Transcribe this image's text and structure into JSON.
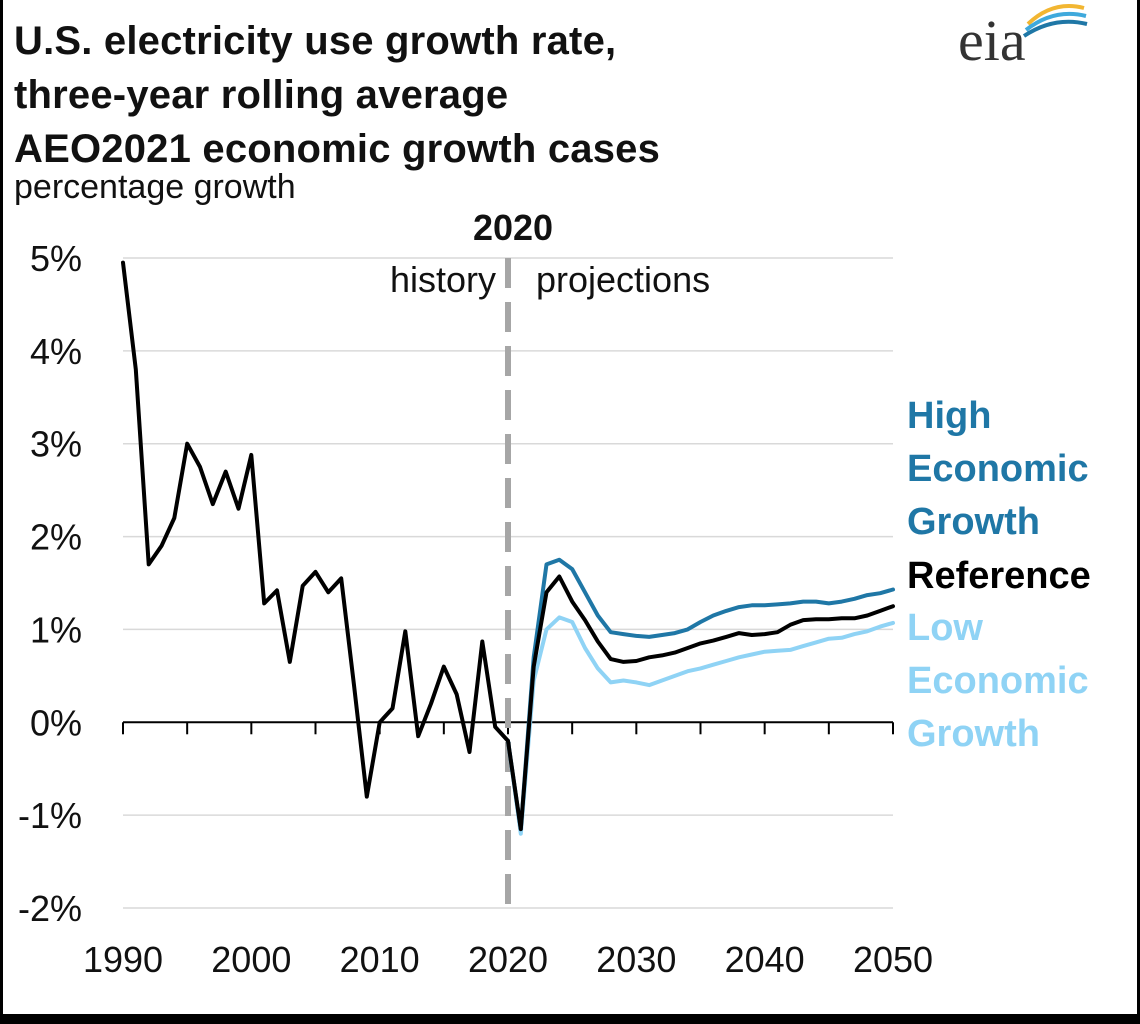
{
  "header": {
    "title_lines": [
      "U.S. electricity use growth rate,",
      "three-year rolling average",
      "AEO2021 economic growth cases"
    ],
    "subtitle": "percentage growth",
    "logo_text": "eia"
  },
  "chart_data": {
    "type": "line",
    "title": "U.S. electricity use growth rate, three-year rolling average AEO2021 economic growth cases",
    "ylabel": "percentage growth",
    "xlim": [
      1990,
      2050
    ],
    "ylim": [
      -2,
      5
    ],
    "x_ticks": [
      1990,
      2000,
      2010,
      2020,
      2030,
      2040,
      2050
    ],
    "y_ticks": [
      -2,
      -1,
      0,
      1,
      2,
      3,
      4,
      5
    ],
    "y_tick_labels": [
      "-2%",
      "-1%",
      "0%",
      "1%",
      "2%",
      "3%",
      "4%",
      "5%"
    ],
    "x_tick_labels": [
      "1990",
      "2000",
      "2010",
      "2020",
      "2030",
      "2040",
      "2050"
    ],
    "grid": "horizontal",
    "divider": {
      "x": 2020,
      "label": "2020",
      "left_label": "history",
      "right_label": "projections"
    },
    "series": [
      {
        "name": "Reference",
        "color": "#000000",
        "label_lines": [
          "Reference"
        ],
        "x": [
          1990,
          1991,
          1992,
          1993,
          1994,
          1995,
          1996,
          1997,
          1998,
          1999,
          2000,
          2001,
          2002,
          2003,
          2004,
          2005,
          2006,
          2007,
          2008,
          2009,
          2010,
          2011,
          2012,
          2013,
          2014,
          2015,
          2016,
          2017,
          2018,
          2019,
          2020,
          2021,
          2022,
          2023,
          2024,
          2025,
          2026,
          2027,
          2028,
          2029,
          2030,
          2031,
          2032,
          2033,
          2034,
          2035,
          2036,
          2037,
          2038,
          2039,
          2040,
          2041,
          2042,
          2043,
          2044,
          2045,
          2046,
          2047,
          2048,
          2049,
          2050
        ],
        "values": [
          4.95,
          3.8,
          1.7,
          1.9,
          2.2,
          3.0,
          2.75,
          2.35,
          2.7,
          2.3,
          2.88,
          1.28,
          1.42,
          0.65,
          1.47,
          1.62,
          1.4,
          1.55,
          0.4,
          -0.8,
          0.0,
          0.15,
          0.98,
          -0.15,
          0.2,
          0.6,
          0.3,
          -0.32,
          0.87,
          -0.05,
          -0.2,
          -1.15,
          0.6,
          1.4,
          1.57,
          1.3,
          1.1,
          0.87,
          0.68,
          0.65,
          0.66,
          0.7,
          0.72,
          0.75,
          0.8,
          0.85,
          0.88,
          0.92,
          0.96,
          0.94,
          0.95,
          0.97,
          1.05,
          1.1,
          1.11,
          1.11,
          1.12,
          1.12,
          1.15,
          1.2,
          1.25
        ]
      },
      {
        "name": "High Economic Growth",
        "color": "#1F77A6",
        "label_lines": [
          "High",
          "Economic",
          "Growth"
        ],
        "x": [
          2020,
          2021,
          2022,
          2023,
          2024,
          2025,
          2026,
          2027,
          2028,
          2029,
          2030,
          2031,
          2032,
          2033,
          2034,
          2035,
          2036,
          2037,
          2038,
          2039,
          2040,
          2041,
          2042,
          2043,
          2044,
          2045,
          2046,
          2047,
          2048,
          2049,
          2050
        ],
        "values": [
          -0.2,
          -1.15,
          0.7,
          1.7,
          1.75,
          1.65,
          1.4,
          1.15,
          0.97,
          0.95,
          0.93,
          0.92,
          0.94,
          0.96,
          1.0,
          1.08,
          1.15,
          1.2,
          1.24,
          1.26,
          1.26,
          1.27,
          1.28,
          1.3,
          1.3,
          1.28,
          1.3,
          1.33,
          1.37,
          1.39,
          1.43
        ]
      },
      {
        "name": "Low Economic Growth",
        "color": "#8FD3F5",
        "label_lines": [
          "Low",
          "Economic",
          "Growth"
        ],
        "x": [
          2020,
          2021,
          2022,
          2023,
          2024,
          2025,
          2026,
          2027,
          2028,
          2029,
          2030,
          2031,
          2032,
          2033,
          2034,
          2035,
          2036,
          2037,
          2038,
          2039,
          2040,
          2041,
          2042,
          2043,
          2044,
          2045,
          2046,
          2047,
          2048,
          2049,
          2050
        ],
        "values": [
          -0.2,
          -1.2,
          0.45,
          1.0,
          1.13,
          1.08,
          0.8,
          0.58,
          0.43,
          0.45,
          0.43,
          0.4,
          0.45,
          0.5,
          0.55,
          0.58,
          0.62,
          0.66,
          0.7,
          0.73,
          0.76,
          0.77,
          0.78,
          0.82,
          0.86,
          0.9,
          0.91,
          0.95,
          0.98,
          1.03,
          1.07
        ]
      }
    ]
  }
}
